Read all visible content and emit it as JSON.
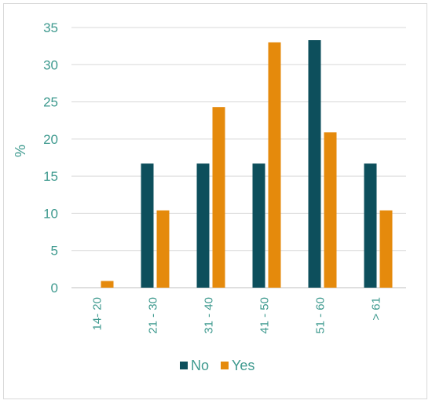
{
  "chart_data": {
    "type": "bar",
    "title": "",
    "xlabel": "",
    "ylabel": "%",
    "ylim": [
      0,
      35
    ],
    "y_ticks": [
      0,
      5,
      10,
      15,
      20,
      25,
      30,
      35
    ],
    "grid": true,
    "legend_position": "bottom",
    "categories": [
      "14- 20",
      "21 - 30",
      "31 - 40",
      "41 - 50",
      "51 - 60",
      "> 61"
    ],
    "series": [
      {
        "name": "No",
        "color": "#0d4f5c",
        "values": [
          0,
          16.7,
          16.7,
          16.7,
          33.3,
          16.7
        ]
      },
      {
        "name": "Yes",
        "color": "#e58a0c",
        "values": [
          0.9,
          10.4,
          24.3,
          33.0,
          20.9,
          10.4
        ]
      }
    ],
    "axis_text_color": "#3f9a8f",
    "grid_color": "#d9d9d9"
  }
}
